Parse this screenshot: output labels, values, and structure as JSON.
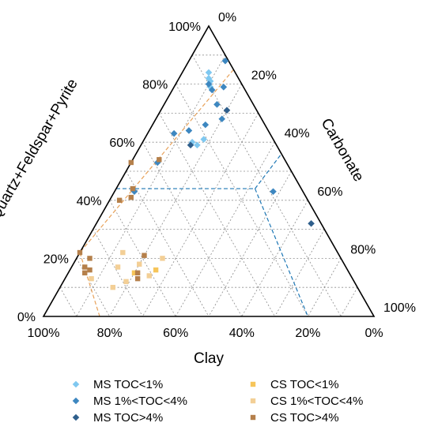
{
  "chart_data": {
    "type": "ternary-scatter",
    "axes": {
      "left": {
        "label": "Quartz+Feldspar+Pyrite",
        "ticks": [
          "0%",
          "20%",
          "40%",
          "60%",
          "80%",
          "100%"
        ]
      },
      "right": {
        "label": "Carbonate",
        "ticks": [
          "0%",
          "20%",
          "40%",
          "60%",
          "80%",
          "100%"
        ]
      },
      "bottom": {
        "label": "Clay",
        "ticks": [
          "100%",
          "80%",
          "60%",
          "40%",
          "20%",
          "0%"
        ]
      }
    },
    "grid": true,
    "legend_position": "bottom",
    "series": [
      {
        "name": "MS TOC<1%",
        "marker": "diamond",
        "color": "#7fc8f0",
        "points": [
          {
            "qfp": 84,
            "carb": 8,
            "clay": 8
          },
          {
            "qfp": 82,
            "carb": 9,
            "clay": 9
          },
          {
            "qfp": 81,
            "carb": 10,
            "clay": 9
          },
          {
            "qfp": 79,
            "carb": 11,
            "clay": 10
          },
          {
            "qfp": 60,
            "carb": 15,
            "clay": 25
          },
          {
            "qfp": 61,
            "carb": 18,
            "clay": 21
          },
          {
            "qfp": 59,
            "carb": 17,
            "clay": 24
          }
        ]
      },
      {
        "name": "MS 1%<TOC<4%",
        "marker": "diamond",
        "color": "#3d87c0",
        "points": [
          {
            "qfp": 88,
            "carb": 11,
            "clay": 1
          },
          {
            "qfp": 80,
            "carb": 10,
            "clay": 10
          },
          {
            "qfp": 79,
            "carb": 15,
            "clay": 6
          },
          {
            "qfp": 78,
            "carb": 12,
            "clay": 10
          },
          {
            "qfp": 73,
            "carb": 16,
            "clay": 11
          },
          {
            "qfp": 68,
            "carb": 20,
            "clay": 12
          },
          {
            "qfp": 66,
            "carb": 16,
            "clay": 18
          },
          {
            "qfp": 64,
            "carb": 12,
            "clay": 24
          },
          {
            "qfp": 63,
            "carb": 8,
            "clay": 29
          },
          {
            "qfp": 53,
            "carb": 8,
            "clay": 39
          },
          {
            "qfp": 43,
            "carb": 6,
            "clay": 51
          },
          {
            "qfp": 43,
            "carb": 48,
            "clay": 9
          }
        ]
      },
      {
        "name": "MS TOC>4%",
        "marker": "diamond",
        "color": "#2f5f8c",
        "points": [
          {
            "qfp": 71,
            "carb": 20,
            "clay": 9
          },
          {
            "qfp": 59,
            "carb": 15,
            "clay": 26
          },
          {
            "qfp": 32,
            "carb": 65,
            "clay": 3
          }
        ]
      },
      {
        "name": "CS TOC<1%",
        "marker": "square",
        "color": "#f6c55a",
        "points": [
          {
            "qfp": 15,
            "carb": 20,
            "clay": 65
          },
          {
            "qfp": 16,
            "carb": 26,
            "clay": 58
          }
        ]
      },
      {
        "name": "CS 1%<TOC<4%",
        "marker": "square",
        "color": "#f3cf96",
        "points": [
          {
            "qfp": 22,
            "carb": 13,
            "clay": 65
          },
          {
            "qfp": 17,
            "carb": 14,
            "clay": 69
          },
          {
            "qfp": 13,
            "carb": 8,
            "clay": 79
          },
          {
            "qfp": 18,
            "carb": 20,
            "clay": 62
          },
          {
            "qfp": 10,
            "carb": 16,
            "clay": 74
          },
          {
            "qfp": 12,
            "carb": 19,
            "clay": 69
          },
          {
            "qfp": 20,
            "carb": 26,
            "clay": 54
          },
          {
            "qfp": 14,
            "carb": 25,
            "clay": 61
          }
        ]
      },
      {
        "name": "CS TOC>4%",
        "marker": "square",
        "color": "#b5804b",
        "points": [
          {
            "qfp": 53,
            "carb": 0,
            "clay": 47
          },
          {
            "qfp": 54,
            "carb": 8,
            "clay": 38
          },
          {
            "qfp": 44,
            "carb": 5,
            "clay": 51
          },
          {
            "qfp": 40,
            "carb": 3,
            "clay": 57
          },
          {
            "qfp": 41,
            "carb": 6,
            "clay": 53
          },
          {
            "qfp": 22,
            "carb": 0,
            "clay": 78
          },
          {
            "qfp": 20,
            "carb": 4,
            "clay": 76
          },
          {
            "qfp": 17,
            "carb": 4,
            "clay": 79
          },
          {
            "qfp": 16,
            "carb": 6,
            "clay": 78
          },
          {
            "qfp": 15,
            "carb": 5,
            "clay": 80
          },
          {
            "qfp": 21,
            "carb": 20,
            "clay": 59
          },
          {
            "qfp": 15,
            "carb": 21,
            "clay": 64
          },
          {
            "qfp": 13,
            "carb": 22,
            "clay": 65
          }
        ]
      }
    ],
    "guide_lines": [
      {
        "color": "#e8a25a",
        "points": [
          {
            "qfp": 85,
            "carb": 15,
            "clay": 0
          },
          {
            "qfp": 22,
            "carb": 0,
            "clay": 78
          }
        ]
      },
      {
        "color": "#e8a25a",
        "points": [
          {
            "qfp": 22,
            "carb": 0,
            "clay": 78
          },
          {
            "qfp": 0,
            "carb": 0,
            "clay": 100
          }
        ]
      },
      {
        "color": "#e8a25a",
        "points": [
          {
            "qfp": 22,
            "carb": 0,
            "clay": 78
          },
          {
            "qfp": 0,
            "carb": 17,
            "clay": 83
          }
        ]
      },
      {
        "color": "#1d77b5",
        "points": [
          {
            "qfp": 44,
            "carb": 0,
            "clay": 56
          },
          {
            "qfp": 44,
            "carb": 42,
            "clay": 14
          }
        ]
      },
      {
        "color": "#1d77b5",
        "points": [
          {
            "qfp": 44,
            "carb": 42,
            "clay": 14
          },
          {
            "qfp": 56,
            "carb": 44,
            "clay": 0
          }
        ]
      },
      {
        "color": "#1d77b5",
        "points": [
          {
            "qfp": 44,
            "carb": 42,
            "clay": 14
          },
          {
            "qfp": 0,
            "carb": 80,
            "clay": 20
          }
        ]
      }
    ]
  }
}
